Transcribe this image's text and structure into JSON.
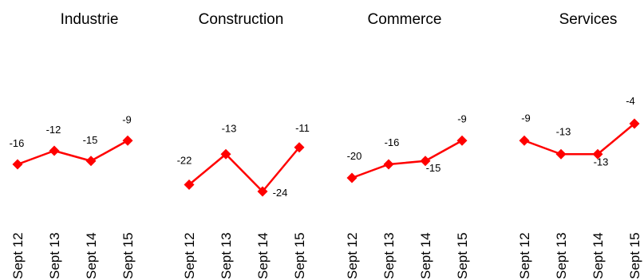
{
  "chart_data": [
    {
      "type": "line",
      "title": "Industrie",
      "categories": [
        "Sept 12",
        "Sept 13",
        "Sept 14",
        "Sept 15"
      ],
      "values": [
        -16,
        -12,
        -15,
        -9
      ],
      "color": "#ff0000"
    },
    {
      "type": "line",
      "title": "Construction",
      "categories": [
        "Sept 12",
        "Sept 13",
        "Sept 14",
        "Sept 15"
      ],
      "values": [
        -22,
        -13,
        -24,
        -11
      ],
      "color": "#ff0000"
    },
    {
      "type": "line",
      "title": "Commerce",
      "categories": [
        "Sept 12",
        "Sept 13",
        "Sept 14",
        "Sept 15"
      ],
      "values": [
        -20,
        -16,
        -15,
        -9
      ],
      "color": "#ff0000"
    },
    {
      "type": "line",
      "title": "Services",
      "categories": [
        "Sept 12",
        "Sept 13",
        "Sept 14",
        "Sept 15"
      ],
      "values": [
        -9,
        -13,
        -13,
        -4
      ],
      "color": "#ff0000"
    }
  ]
}
